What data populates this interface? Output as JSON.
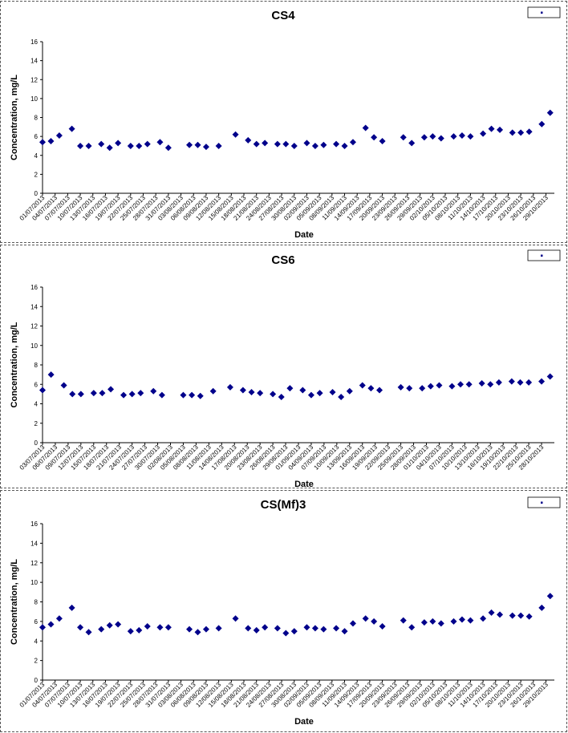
{
  "chart_data": [
    {
      "type": "scatter",
      "title": "CS4",
      "xlabel": "Date",
      "ylabel": "Concentration, mg/L",
      "ylim": [
        0,
        16
      ],
      "yticks": [
        0,
        2,
        4,
        6,
        8,
        10,
        12,
        14,
        16
      ],
      "xlim": [
        "2013-07-01",
        "2013-10-31"
      ],
      "grid": false,
      "legend": "top-right",
      "marker_color": "#00008B",
      "tick_labels": [
        "01/07/2013",
        "04/07/2013",
        "07/07/2013",
        "10/07/2013",
        "13/07/2013",
        "16/07/2013",
        "19/07/2013",
        "22/07/2013",
        "25/07/2013",
        "28/07/2013",
        "31/07/2013",
        "03/08/2013",
        "06/08/2013",
        "09/08/2013",
        "12/08/2013",
        "15/08/2013",
        "18/08/2013",
        "21/08/2013",
        "24/08/2013",
        "27/08/2013",
        "30/08/2013",
        "02/09/2013",
        "05/09/2013",
        "08/09/2013",
        "11/09/2013",
        "14/09/2013",
        "17/09/2013",
        "20/09/2013",
        "23/09/2013",
        "26/09/2013",
        "29/09/2013",
        "02/10/2013",
        "05/10/2013",
        "08/10/2013",
        "11/10/2013",
        "14/10/2013",
        "17/10/2013",
        "20/10/2013",
        "23/10/2013",
        "26/10/2013",
        "29/10/2013"
      ],
      "series": [
        {
          "x": [
            "2013-07-01",
            "2013-07-03",
            "2013-07-05",
            "2013-07-08",
            "2013-07-10",
            "2013-07-12",
            "2013-07-15",
            "2013-07-17",
            "2013-07-19",
            "2013-07-22",
            "2013-07-24",
            "2013-07-26",
            "2013-07-29",
            "2013-07-31",
            "2013-08-05",
            "2013-08-07",
            "2013-08-09",
            "2013-08-12",
            "2013-08-16",
            "2013-08-19",
            "2013-08-21",
            "2013-08-23",
            "2013-08-26",
            "2013-08-28",
            "2013-08-30",
            "2013-09-02",
            "2013-09-04",
            "2013-09-06",
            "2013-09-09",
            "2013-09-11",
            "2013-09-13",
            "2013-09-16",
            "2013-09-18",
            "2013-09-20",
            "2013-09-25",
            "2013-09-27",
            "2013-09-30",
            "2013-10-02",
            "2013-10-04",
            "2013-10-07",
            "2013-10-09",
            "2013-10-11",
            "2013-10-14",
            "2013-10-16",
            "2013-10-18",
            "2013-10-21",
            "2013-10-23",
            "2013-10-25",
            "2013-10-28",
            "2013-10-30"
          ],
          "y": [
            5.4,
            5.5,
            6.1,
            6.8,
            5.0,
            5.0,
            5.2,
            4.8,
            5.3,
            5.0,
            5.0,
            5.2,
            5.4,
            4.8,
            5.1,
            5.1,
            4.9,
            5.0,
            6.2,
            5.6,
            5.2,
            5.3,
            5.2,
            5.2,
            5.0,
            5.3,
            5.0,
            5.1,
            5.2,
            5.0,
            5.4,
            6.9,
            5.9,
            5.5,
            5.9,
            5.3,
            5.9,
            6.0,
            5.8,
            6.0,
            6.1,
            6.0,
            6.3,
            6.8,
            6.7,
            6.4,
            6.4,
            6.5,
            7.3,
            8.5
          ]
        }
      ]
    },
    {
      "type": "scatter",
      "title": "CS6",
      "xlabel": "Date",
      "ylabel": "Concentration, mg/L",
      "ylim": [
        0,
        16
      ],
      "yticks": [
        0,
        2,
        4,
        6,
        8,
        10,
        12,
        14,
        16
      ],
      "xlim": [
        "2013-07-03",
        "2013-10-31"
      ],
      "grid": false,
      "legend": "top-right",
      "marker_color": "#00008B",
      "tick_labels": [
        "03/07/2013",
        "06/07/2013",
        "09/07/2013",
        "12/07/2013",
        "15/07/2013",
        "18/07/2013",
        "21/07/2013",
        "24/07/2013",
        "27/07/2013",
        "30/07/2013",
        "02/08/2013",
        "05/08/2013",
        "08/08/2013",
        "11/08/2013",
        "14/08/2013",
        "17/08/2013",
        "20/08/2013",
        "23/08/2013",
        "26/08/2013",
        "29/08/2013",
        "01/09/2013",
        "04/09/2013",
        "07/09/2013",
        "10/09/2013",
        "13/09/2013",
        "16/09/2013",
        "19/09/2013",
        "22/09/2013",
        "25/09/2013",
        "28/09/2013",
        "01/10/2013",
        "04/10/2013",
        "07/10/2013",
        "10/10/2013",
        "13/10/2013",
        "16/10/2013",
        "19/10/2013",
        "22/10/2013",
        "25/10/2013",
        "28/10/2013"
      ],
      "series": [
        {
          "x": [
            "2013-07-03",
            "2013-07-05",
            "2013-07-08",
            "2013-07-10",
            "2013-07-12",
            "2013-07-15",
            "2013-07-17",
            "2013-07-19",
            "2013-07-22",
            "2013-07-24",
            "2013-07-26",
            "2013-07-29",
            "2013-07-31",
            "2013-08-05",
            "2013-08-07",
            "2013-08-09",
            "2013-08-12",
            "2013-08-16",
            "2013-08-19",
            "2013-08-21",
            "2013-08-23",
            "2013-08-26",
            "2013-08-28",
            "2013-08-30",
            "2013-09-02",
            "2013-09-04",
            "2013-09-06",
            "2013-09-09",
            "2013-09-11",
            "2013-09-13",
            "2013-09-16",
            "2013-09-18",
            "2013-09-20",
            "2013-09-25",
            "2013-09-27",
            "2013-09-30",
            "2013-10-02",
            "2013-10-04",
            "2013-10-07",
            "2013-10-09",
            "2013-10-11",
            "2013-10-14",
            "2013-10-16",
            "2013-10-18",
            "2013-10-21",
            "2013-10-23",
            "2013-10-25",
            "2013-10-28",
            "2013-10-30"
          ],
          "y": [
            5.4,
            7.0,
            5.9,
            5.0,
            5.0,
            5.1,
            5.1,
            5.5,
            4.9,
            5.0,
            5.1,
            5.3,
            4.9,
            4.9,
            4.9,
            4.8,
            5.3,
            5.7,
            5.4,
            5.2,
            5.1,
            5.0,
            4.7,
            5.6,
            5.4,
            4.9,
            5.1,
            5.2,
            4.7,
            5.3,
            5.9,
            5.6,
            5.4,
            5.7,
            5.6,
            5.6,
            5.8,
            5.9,
            5.8,
            6.0,
            6.0,
            6.1,
            6.0,
            6.2,
            6.3,
            6.2,
            6.2,
            6.3,
            6.8
          ]
        }
      ]
    },
    {
      "type": "scatter",
      "title": "CS(Mf)3",
      "xlabel": "Date",
      "ylabel": "Concentration, mg/L",
      "ylim": [
        0,
        16
      ],
      "yticks": [
        0,
        2,
        4,
        6,
        8,
        10,
        12,
        14,
        16
      ],
      "xlim": [
        "2013-07-01",
        "2013-10-31"
      ],
      "grid": false,
      "legend": "top-right",
      "marker_color": "#00008B",
      "tick_labels": [
        "01/07/2013",
        "04/07/2013",
        "07/07/2013",
        "10/07/2013",
        "13/07/2013",
        "16/07/2013",
        "19/07/2013",
        "22/07/2013",
        "25/07/2013",
        "28/07/2013",
        "31/07/2013",
        "03/08/2013",
        "06/08/2013",
        "09/08/2013",
        "12/08/2013",
        "15/08/2013",
        "18/08/2013",
        "21/08/2013",
        "24/08/2013",
        "27/08/2013",
        "30/08/2013",
        "02/09/2013",
        "05/09/2013",
        "08/09/2013",
        "11/09/2013",
        "14/09/2013",
        "17/09/2013",
        "20/09/2013",
        "23/09/2013",
        "26/09/2013",
        "29/09/2013",
        "02/10/2013",
        "05/10/2013",
        "08/10/2013",
        "11/10/2013",
        "14/10/2013",
        "17/10/2013",
        "20/10/2013",
        "23/10/2013",
        "26/10/2013",
        "29/10/2013"
      ],
      "series": [
        {
          "x": [
            "2013-07-01",
            "2013-07-03",
            "2013-07-05",
            "2013-07-08",
            "2013-07-10",
            "2013-07-12",
            "2013-07-15",
            "2013-07-17",
            "2013-07-19",
            "2013-07-22",
            "2013-07-24",
            "2013-07-26",
            "2013-07-29",
            "2013-07-31",
            "2013-08-05",
            "2013-08-07",
            "2013-08-09",
            "2013-08-12",
            "2013-08-16",
            "2013-08-19",
            "2013-08-21",
            "2013-08-23",
            "2013-08-26",
            "2013-08-28",
            "2013-08-30",
            "2013-09-02",
            "2013-09-04",
            "2013-09-06",
            "2013-09-09",
            "2013-09-11",
            "2013-09-13",
            "2013-09-16",
            "2013-09-18",
            "2013-09-20",
            "2013-09-25",
            "2013-09-27",
            "2013-09-30",
            "2013-10-02",
            "2013-10-04",
            "2013-10-07",
            "2013-10-09",
            "2013-10-11",
            "2013-10-14",
            "2013-10-16",
            "2013-10-18",
            "2013-10-21",
            "2013-10-23",
            "2013-10-25",
            "2013-10-28",
            "2013-10-30"
          ],
          "y": [
            5.4,
            5.7,
            6.3,
            7.4,
            5.4,
            4.9,
            5.2,
            5.6,
            5.7,
            5.0,
            5.1,
            5.5,
            5.4,
            5.4,
            5.2,
            4.9,
            5.2,
            5.3,
            6.3,
            5.3,
            5.1,
            5.4,
            5.3,
            4.8,
            5.0,
            5.4,
            5.3,
            5.2,
            5.3,
            5.0,
            5.8,
            6.3,
            6.0,
            5.5,
            6.1,
            5.4,
            5.9,
            6.0,
            5.8,
            6.0,
            6.2,
            6.1,
            6.3,
            6.9,
            6.7,
            6.6,
            6.6,
            6.5,
            7.4,
            8.6
          ]
        }
      ]
    }
  ]
}
